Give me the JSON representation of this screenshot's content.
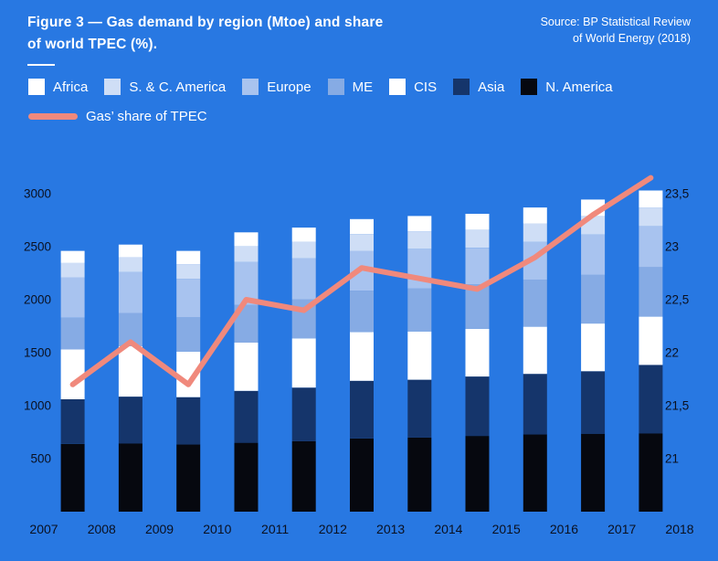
{
  "header": {
    "title_line1": "Figure 3 — Gas demand by region (Mtoe) and share",
    "title_line2": "of world TPEC (%).",
    "source_line1": "Source: BP Statistical Review",
    "source_line2": "of World Energy (2018)"
  },
  "colors": {
    "background": "#2878e2",
    "title_text": "#ffffff",
    "legend_text": "#ffffff",
    "axis_text": "#0a1020",
    "line": "#f0897c"
  },
  "chart_data": {
    "type": "bar",
    "subtype": "stacked-bar-with-line",
    "title": "Gas demand by region (Mtoe) and share of world TPEC (%)",
    "grid": false,
    "legend_position": "top",
    "categories": [
      2007,
      2008,
      2009,
      2010,
      2011,
      2012,
      2013,
      2014,
      2015,
      2016,
      2017
    ],
    "x_axis_ticks": [
      "2007",
      "2008",
      "2009",
      "2010",
      "2011",
      "2012",
      "2013",
      "2014",
      "2015",
      "2016",
      "2017",
      "2018"
    ],
    "left_axis": {
      "ticks": [
        500,
        1000,
        1500,
        2000,
        2500,
        3000
      ],
      "range": [
        0,
        3250
      ],
      "units": "Mtoe"
    },
    "right_axis": {
      "tick_labels": [
        "21",
        "21,5",
        "22",
        "22,5",
        "23",
        "23,5"
      ],
      "tick_values": [
        21,
        21.5,
        22,
        22.5,
        23,
        23.5
      ],
      "range": [
        20.5,
        23.75
      ],
      "units": "%"
    },
    "series": [
      {
        "name": "Africa",
        "color": "#ffffff",
        "values": [
          115,
          120,
          125,
          130,
          135,
          140,
          145,
          150,
          150,
          155,
          160
        ]
      },
      {
        "name": "S. & C. America",
        "color": "#cfdef6",
        "values": [
          135,
          140,
          140,
          150,
          155,
          160,
          165,
          170,
          175,
          175,
          175
        ]
      },
      {
        "name": "Europe",
        "color": "#a8c3ef",
        "values": [
          380,
          385,
          360,
          405,
          385,
          375,
          375,
          345,
          355,
          380,
          385
        ]
      },
      {
        "name": "ME",
        "color": "#86abe4",
        "values": [
          300,
          315,
          325,
          355,
          370,
          390,
          405,
          420,
          445,
          460,
          470
        ]
      },
      {
        "name": "CIS",
        "color": "#ffffff",
        "values": [
          470,
          475,
          430,
          455,
          465,
          460,
          455,
          450,
          445,
          450,
          455
        ]
      },
      {
        "name": "Asia",
        "color": "#15356b",
        "values": [
          420,
          440,
          445,
          490,
          505,
          545,
          545,
          560,
          570,
          590,
          645
        ]
      },
      {
        "name": "N. America",
        "color": "#06080f",
        "values": [
          640,
          645,
          635,
          650,
          665,
          690,
          700,
          715,
          730,
          735,
          740
        ]
      }
    ],
    "stack_order_bottom_to_top": [
      "N. America",
      "Asia",
      "CIS",
      "ME",
      "Europe",
      "S. & C. America",
      "Africa"
    ],
    "line_series": {
      "name": "Gas’ share of TPEC",
      "color": "#f0897c",
      "axis": "right",
      "values": [
        21.7,
        22.1,
        21.7,
        22.5,
        22.4,
        22.8,
        22.7,
        22.6,
        22.9,
        23.3,
        23.65
      ]
    }
  }
}
